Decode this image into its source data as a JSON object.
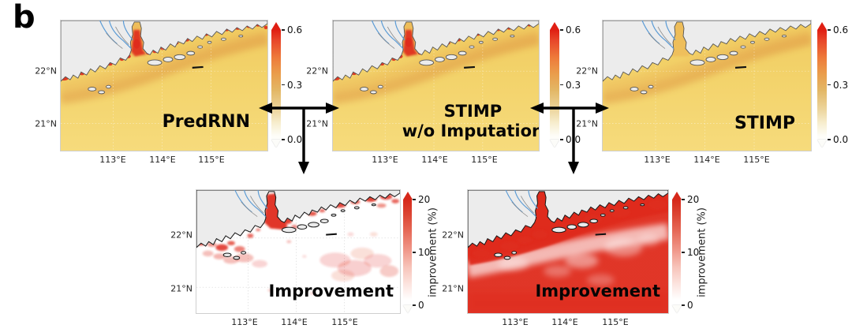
{
  "figure_label": "b",
  "axes": {
    "lat_ticks": [
      "22°N",
      "21°N"
    ],
    "lon_ticks": [
      "113°E",
      "114°E",
      "115°E"
    ]
  },
  "colorbars": {
    "sst": {
      "ticks": [
        "0.6",
        "0.3",
        "0.0"
      ]
    },
    "improvement": {
      "ticks": [
        "20",
        "10",
        "0"
      ],
      "label": "improvement (%)"
    }
  },
  "panels": {
    "predrnn": {
      "title": "PredRNN"
    },
    "stimp_wo_imputation": {
      "title_line1": "STIMP",
      "title_line2": "w/o Imputation"
    },
    "stimp": {
      "title": "STIMP"
    },
    "improvement_left": {
      "title": "Improvement"
    },
    "improvement_right": {
      "title": "Improvement"
    }
  },
  "colors": {
    "improvement_high": "#df2b1c",
    "sst_scale_top": "#e01f13",
    "sea_yellow": "#f3d36b",
    "land": "#ececec",
    "river": "#5b9bd5",
    "arrow": "#000000"
  },
  "chart_data": [
    {
      "type": "heatmap",
      "title": "PredRNN",
      "x_ticks": [
        "113°E",
        "114°E",
        "115°E"
      ],
      "y_ticks": [
        "22°N",
        "21°N"
      ],
      "colorbar_range": [
        0.0,
        0.6
      ],
      "colorbar_ticks": [
        0.0,
        0.3,
        0.6
      ],
      "colorbar_extend": "both",
      "colormap": "white-yellow-orange-red",
      "notes": "prediction error field over coastal sea; red hotspots along coastline and estuary"
    },
    {
      "type": "heatmap",
      "title": "STIMP w/o Imputation",
      "x_ticks": [
        "113°E",
        "114°E",
        "115°E"
      ],
      "y_ticks": [
        "22°N",
        "21°N"
      ],
      "colorbar_range": [
        0.0,
        0.6
      ],
      "colorbar_ticks": [
        0.0,
        0.3,
        0.6
      ],
      "colorbar_extend": "both",
      "colormap": "white-yellow-orange-red",
      "notes": "similar to PredRNN with red coastal hotspots"
    },
    {
      "type": "heatmap",
      "title": "STIMP",
      "x_ticks": [
        "113°E",
        "114°E",
        "115°E"
      ],
      "y_ticks": [
        "22°N",
        "21°N"
      ],
      "colorbar_range": [
        0.0,
        0.6
      ],
      "colorbar_ticks": [
        0.0,
        0.3,
        0.6
      ],
      "colorbar_extend": "both",
      "colormap": "white-yellow-orange-red",
      "notes": "smooth low-error field, almost no red hotspots"
    },
    {
      "type": "heatmap",
      "title": "Improvement",
      "x_ticks": [
        "113°E",
        "114°E",
        "115°E"
      ],
      "y_ticks": [
        "22°N",
        "21°N"
      ],
      "colorbar_range": [
        0,
        20
      ],
      "colorbar_ticks": [
        0,
        10,
        20
      ],
      "colorbar_label": "improvement (%)",
      "colorbar_extend": "both",
      "colormap": "white-red",
      "notes": "scattered red improvement patches concentrated near coast and estuary (STIMP vs PredRNN)"
    },
    {
      "type": "heatmap",
      "title": "Improvement",
      "x_ticks": [
        "113°E",
        "114°E",
        "115°E"
      ],
      "y_ticks": [
        "22°N",
        "21°N"
      ],
      "colorbar_range": [
        0,
        20
      ],
      "colorbar_ticks": [
        0,
        10,
        20
      ],
      "colorbar_label": "improvement (%)",
      "colorbar_extend": "both",
      "colormap": "white-red",
      "notes": "widespread strong red improvement across nearly the whole sea area (STIMP vs STIMP w/o Imputation)"
    }
  ]
}
